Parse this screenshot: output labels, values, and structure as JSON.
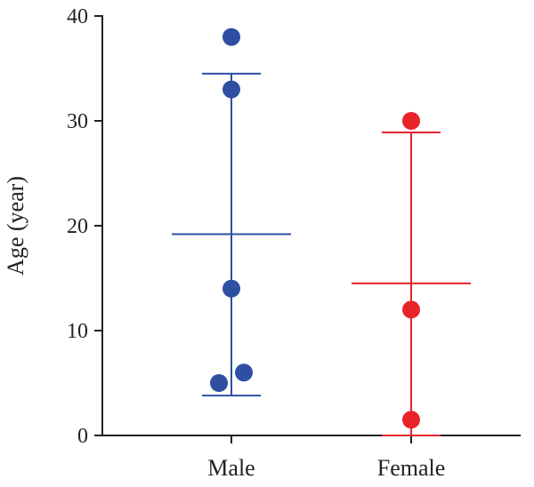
{
  "chart_data": {
    "type": "scatter",
    "title": "",
    "xlabel": "",
    "ylabel": "Age (year)",
    "categories": [
      "Male",
      "Female"
    ],
    "ylim": [
      0,
      40
    ],
    "yticks": [
      0,
      10,
      20,
      30,
      40
    ],
    "grid": false,
    "series": [
      {
        "category": "Male",
        "color": "#2f4fa2",
        "points": [
          38,
          33,
          14,
          6,
          5
        ],
        "mean": 19.2,
        "sd_upper": 34.5,
        "sd_lower": 3.8
      },
      {
        "category": "Female",
        "color": "#e8242b",
        "points": [
          30,
          12,
          1.5
        ],
        "mean": 14.5,
        "sd_upper": 28.9,
        "sd_lower": 0
      }
    ]
  }
}
